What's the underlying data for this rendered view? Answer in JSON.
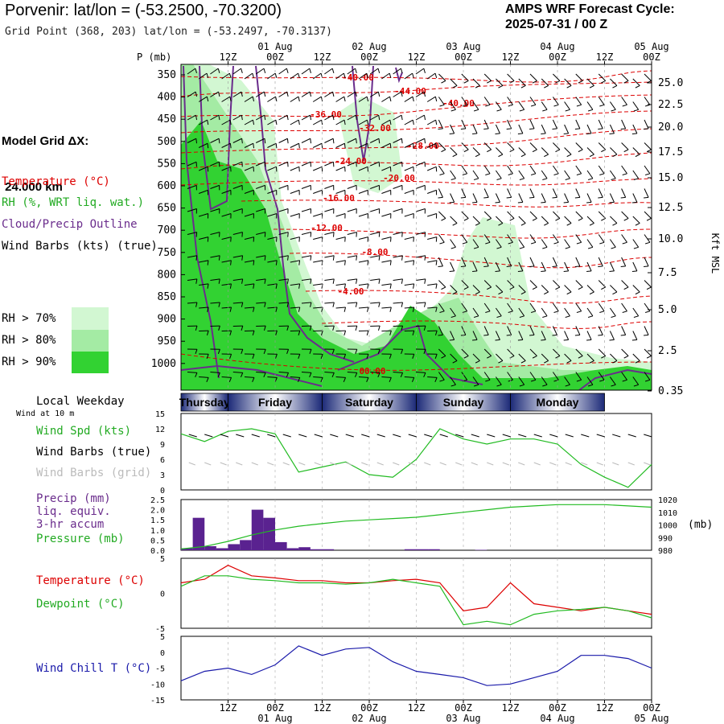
{
  "header": {
    "title": "Porvenir:  lat/lon = (-53.2500, -70.3200)",
    "grid_point": "Grid Point (368, 203) lat/lon = (-53.2497, -70.3137)",
    "cycle_label": "AMPS WRF Forecast Cycle:",
    "cycle_value": "2025-07-31 / 00  Z"
  },
  "legend": {
    "model_grid_1": "Model Grid ΔX:",
    "model_grid_2": " 24.000 km",
    "temperature": "Temperature (°C)",
    "rh": "RH (%, WRT liq. wat.)",
    "cloud": "Cloud/Precip Outline",
    "wind": "Wind Barbs (kts) (true)",
    "rh70": "RH > 70%",
    "rh80": "RH > 80%",
    "rh90": "RH > 90%",
    "colors": {
      "rh70": "#d2f7d2",
      "rh80": "#a4eba4",
      "rh90": "#32d232",
      "cloud": "#6a2c8c",
      "temp": "#dd0000"
    }
  },
  "time_axis": {
    "top_ticks": [
      "12Z",
      "00Z",
      "12Z",
      "00Z",
      "12Z",
      "00Z",
      "12Z",
      "00Z",
      "12Z",
      "00Z"
    ],
    "bottom_ticks": [
      "12Z",
      "00Z",
      "12Z",
      "00Z",
      "12Z",
      "00Z",
      "12Z",
      "00Z",
      "12Z",
      "00Z"
    ],
    "dates": [
      "01 Aug",
      "02 Aug",
      "03 Aug",
      "04 Aug",
      "05 Aug"
    ]
  },
  "chart_data": [
    {
      "type": "heatmap",
      "ylabel_left": "P (mb)",
      "ylabel_right": "Kft MSL",
      "pressure_ticks": [
        "350",
        "400",
        "450",
        "500",
        "550",
        "600",
        "650",
        "700",
        "750",
        "800",
        "850",
        "900",
        "950",
        "1000"
      ],
      "height_ticks": [
        "25.0",
        "22.5",
        "20.0",
        "17.5",
        "15.0",
        "12.5",
        "10.0",
        "7.5",
        "5.0",
        "2.5",
        "0.35"
      ],
      "temperature_contour_labels": [
        "-40.00",
        "-44.00",
        "-40.00",
        "-36.00",
        "-32.00",
        "-28.00",
        "-24.00",
        "-20.00",
        "-16.00",
        "-12.00",
        "-8.00",
        "-4.00",
        "00.00"
      ]
    },
    {
      "type": "line",
      "local_weekday_label": "Local Weekday",
      "wind_height_label": "Wind at 10 m",
      "weekdays": [
        "Thursday",
        "Friday",
        "Saturday",
        "Sunday",
        "Monday"
      ],
      "series_labels": [
        "Wind Spd (kts)",
        "Wind Barbs (true)",
        "Wind Barbs (grid)"
      ],
      "y_ticks": [
        "15",
        "12",
        "9",
        "6",
        "3",
        "0"
      ],
      "ylim": [
        0,
        15
      ],
      "x_hours": [
        0,
        6,
        12,
        18,
        24,
        30,
        36,
        42,
        48,
        54,
        60,
        66,
        72,
        78,
        84,
        90,
        96,
        102,
        108,
        114,
        120
      ],
      "wind_speed": [
        11,
        9.5,
        11.5,
        12,
        11,
        3.5,
        4.5,
        5.5,
        3,
        2.5,
        6,
        12,
        10,
        9,
        10,
        10,
        9,
        5,
        2.5,
        0.5,
        5
      ]
    },
    {
      "type": "bar",
      "labels": [
        "Precip (mm)",
        "liq. equiv.",
        "3-hr accum",
        "Pressure (mb)"
      ],
      "y_ticks_left": [
        "2.5",
        "2.0",
        "1.5",
        "1.0",
        "0.5",
        "0.0"
      ],
      "y_ticks_right": [
        "1020",
        "1010",
        "1000",
        "990",
        "980"
      ],
      "right_unit": "(mb)",
      "precip_hours": [
        3,
        6,
        9,
        12,
        15,
        18,
        21,
        24,
        27,
        30,
        33,
        36,
        39,
        42,
        45,
        48,
        51,
        54,
        57,
        60,
        63,
        66,
        69,
        72,
        75,
        78
      ],
      "precip_values": [
        0.1,
        1.6,
        0.2,
        0.1,
        0.3,
        0.5,
        2.0,
        1.6,
        0.4,
        0.1,
        0.15,
        0.05,
        0.05,
        0,
        0,
        0,
        0,
        0,
        0,
        0.05,
        0.05,
        0.05,
        0,
        0,
        0,
        0.02
      ],
      "pressure_hours": [
        0,
        6,
        12,
        18,
        24,
        30,
        36,
        42,
        48,
        54,
        60,
        66,
        72,
        78,
        84,
        90,
        96,
        102,
        108,
        114,
        120
      ],
      "pressure_values": [
        981,
        983,
        987,
        992,
        996,
        999,
        1001,
        1003,
        1004,
        1005,
        1006,
        1008,
        1010,
        1012,
        1014,
        1015,
        1016,
        1016,
        1016,
        1015,
        1014
      ]
    },
    {
      "type": "line",
      "series_labels": [
        "Temperature (°C)",
        "Dewpoint (°C)"
      ],
      "y_ticks": [
        "5",
        "0",
        "-5"
      ],
      "ylim": [
        -5,
        5
      ],
      "x_hours": [
        0,
        6,
        12,
        18,
        24,
        30,
        36,
        42,
        48,
        54,
        60,
        66,
        72,
        78,
        84,
        90,
        96,
        102,
        108,
        114,
        120
      ],
      "temperature": [
        1.5,
        2,
        4,
        2.5,
        2.2,
        1.8,
        1.8,
        1.5,
        1.5,
        1.8,
        2,
        1.5,
        -2.5,
        -2,
        1.5,
        -1.5,
        -2,
        -2.5,
        -2,
        -2.5,
        -3
      ],
      "dewpoint": [
        1,
        2.5,
        2.5,
        2,
        1.8,
        1.5,
        1.5,
        1.3,
        1.5,
        2,
        1.5,
        1,
        -4.5,
        -4,
        -4.5,
        -3,
        -2.5,
        -2.3,
        -2,
        -2.5,
        -3.5
      ]
    },
    {
      "type": "line",
      "series_labels": [
        "Wind Chill T (°C)"
      ],
      "y_ticks": [
        "5",
        "0",
        "-5",
        "-10",
        "-15"
      ],
      "ylim": [
        -15,
        5
      ],
      "x_hours": [
        0,
        6,
        12,
        18,
        24,
        30,
        36,
        42,
        48,
        54,
        60,
        66,
        72,
        78,
        84,
        90,
        96,
        102,
        108,
        114,
        120
      ],
      "wind_chill": [
        -9,
        -6,
        -5,
        -7,
        -4,
        2,
        -1,
        1,
        1.5,
        -3,
        -6,
        -7,
        -8,
        -10.5,
        -10,
        -8,
        -6,
        -1,
        -1,
        -2,
        -5
      ]
    }
  ]
}
